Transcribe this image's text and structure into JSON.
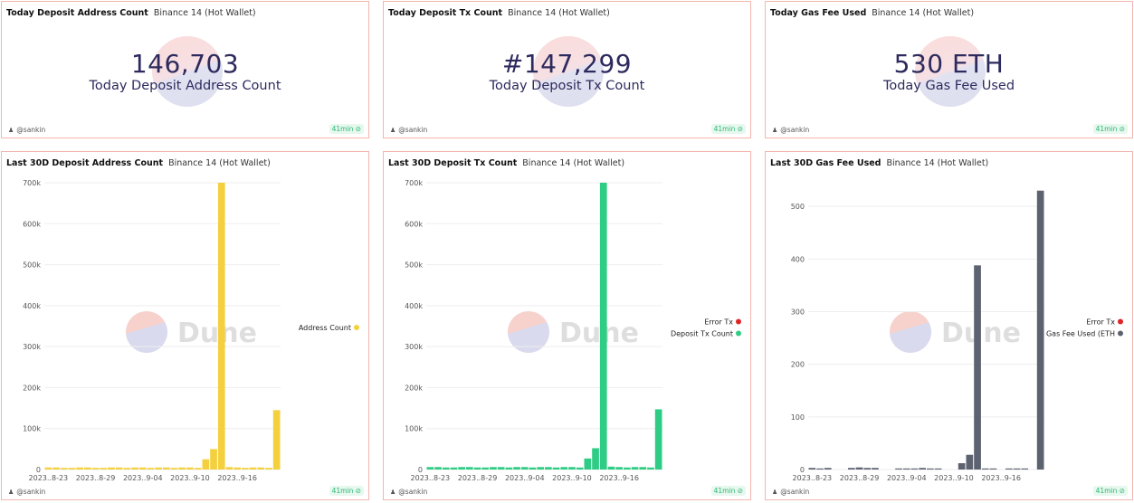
{
  "counters": [
    {
      "title": "Today Deposit Address Count",
      "query": "Binance 14 (Hot Wallet)",
      "value": "146,703",
      "label": "Today Deposit Address Count",
      "user": "@sankin",
      "age": "41min"
    },
    {
      "title": "Today Deposit Tx Count",
      "query": "Binance 14 (Hot Wallet)",
      "value": "#147,299",
      "label": "Today Deposit Tx Count",
      "user": "@sankin",
      "age": "41min"
    },
    {
      "title": "Today Gas Fee Used",
      "query": "Binance 14 (Hot Wallet)",
      "value": "530 ETH",
      "label": "Today Gas Fee Used",
      "user": "@sankin",
      "age": "41min"
    }
  ],
  "panels": [
    {
      "title": "Last 30D Deposit Address Count",
      "query": "Binance 14 (Hot Wallet)",
      "user": "@sankin",
      "age": "41min",
      "watermark": "Dune"
    },
    {
      "title": "Last 30D Deposit Tx Count",
      "query": "Binance 14 (Hot Wallet)",
      "user": "@sankin",
      "age": "41min",
      "watermark": "Dune"
    },
    {
      "title": "Last 30D Gas Fee Used",
      "query": "Binance 14 (Hot Wallet)",
      "user": "@sankin",
      "age": "41min",
      "watermark": "Dune"
    }
  ],
  "chart_data": [
    {
      "type": "bar",
      "title": "Last 30D Deposit Address Count",
      "x_tick_labels": [
        "2023..8-23",
        "2023..8-29",
        "2023..9-04",
        "2023..9-10",
        "2023..9-16"
      ],
      "y_tick_labels": [
        "0",
        "100k",
        "200k",
        "300k",
        "400k",
        "500k",
        "600k",
        "700k"
      ],
      "ylim": [
        0,
        700000
      ],
      "grid": true,
      "legend_position": "right",
      "series": [
        {
          "name": "Address Count",
          "color": "#f4d03f",
          "values": [
            5000,
            5000,
            4000,
            4000,
            5000,
            5000,
            4000,
            4000,
            5000,
            5000,
            4000,
            5000,
            5000,
            4000,
            5000,
            5000,
            4000,
            5000,
            5000,
            4000,
            25000,
            50000,
            700000,
            6000,
            5000,
            4000,
            5000,
            5000,
            4000,
            145000
          ]
        }
      ]
    },
    {
      "type": "bar",
      "title": "Last 30D Deposit Tx Count",
      "x_tick_labels": [
        "2023..8-23",
        "2023..8-29",
        "2023..9-04",
        "2023..9-10",
        "2023..9-16"
      ],
      "y_tick_labels": [
        "0",
        "100k",
        "200k",
        "300k",
        "400k",
        "500k",
        "600k",
        "700k"
      ],
      "ylim": [
        0,
        700000
      ],
      "grid": true,
      "legend_position": "right",
      "series": [
        {
          "name": "Error Tx",
          "color": "#e02424",
          "values": [
            0,
            0,
            0,
            0,
            0,
            0,
            0,
            0,
            0,
            0,
            0,
            0,
            0,
            0,
            0,
            0,
            0,
            0,
            0,
            0,
            0,
            0,
            0,
            0,
            0,
            0,
            0,
            0,
            0,
            0
          ]
        },
        {
          "name": "Deposit Tx Count",
          "color": "#2ecc84",
          "values": [
            6000,
            6000,
            5000,
            5000,
            6000,
            6000,
            5000,
            5000,
            6000,
            6000,
            5000,
            6000,
            6000,
            5000,
            6000,
            6000,
            5000,
            6000,
            6000,
            5000,
            27000,
            52000,
            700000,
            7000,
            6000,
            5000,
            6000,
            6000,
            5000,
            147000
          ]
        }
      ]
    },
    {
      "type": "bar",
      "title": "Last 30D Gas Fee Used",
      "x_tick_labels": [
        "2023..8-23",
        "2023..8-29",
        "2023..9-04",
        "2023..9-10",
        "2023..9-16"
      ],
      "y_tick_labels": [
        "0",
        "100",
        "200",
        "300",
        "400",
        "500"
      ],
      "ylim": [
        0,
        545
      ],
      "grid": true,
      "legend_position": "right",
      "series": [
        {
          "name": "Error Tx",
          "color": "#e02424",
          "values": [
            0,
            0,
            0,
            0,
            0,
            0,
            0,
            0,
            0,
            0,
            0,
            0,
            0,
            0,
            0,
            0,
            0,
            0,
            0,
            0,
            0,
            0,
            0,
            0,
            0,
            0,
            0,
            0,
            0,
            0
          ]
        },
        {
          "name": "Gas Fee Used (ETH",
          "color": "#5d6270",
          "values": [
            3,
            2,
            3,
            0,
            0,
            3,
            4,
            3,
            3,
            0,
            0,
            2,
            2,
            2,
            3,
            2,
            2,
            0,
            0,
            12,
            28,
            388,
            2,
            2,
            0,
            2,
            2,
            2,
            0,
            530
          ]
        }
      ]
    }
  ]
}
